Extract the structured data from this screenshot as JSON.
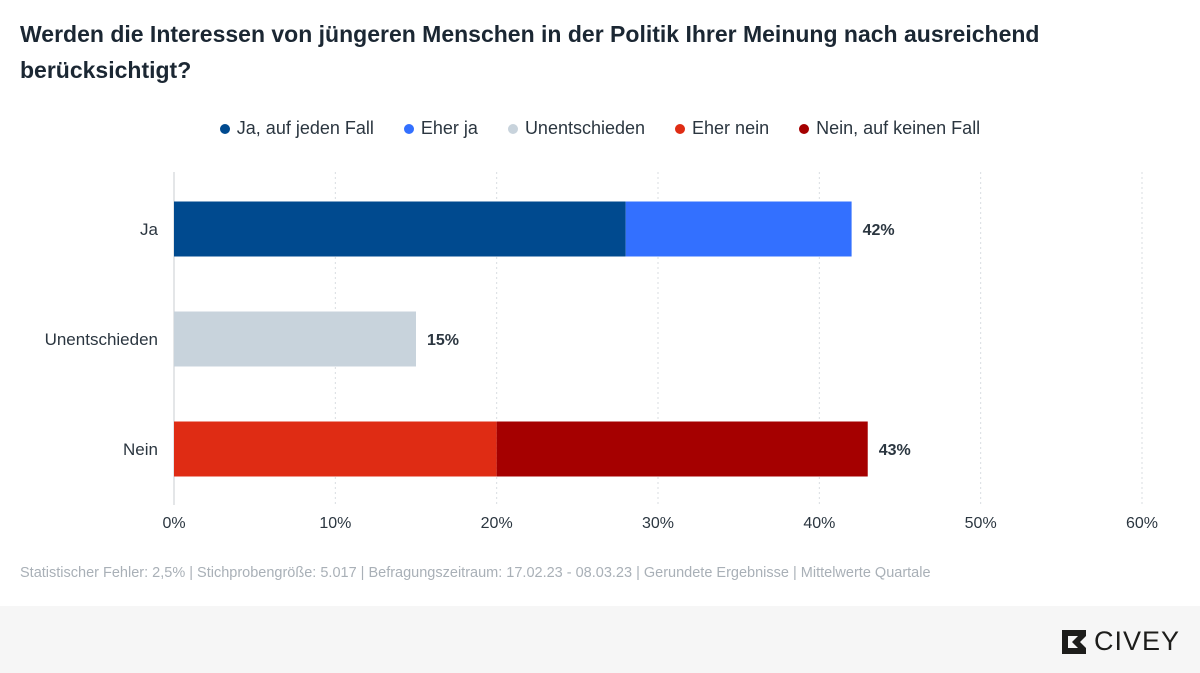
{
  "title": "Werden die Interessen von jüngeren Menschen in der Politik Ihrer Meinung nach ausreichend berücksichtigt?",
  "legend": [
    {
      "label": "Ja, auf jeden Fall",
      "color": "#004a8f"
    },
    {
      "label": "Eher ja",
      "color": "#3370ff"
    },
    {
      "label": "Unentschieden",
      "color": "#c8d3dc"
    },
    {
      "label": "Eher nein",
      "color": "#df2c14"
    },
    {
      "label": "Nein, auf keinen Fall",
      "color": "#a50000"
    }
  ],
  "chart_data": {
    "type": "bar",
    "orientation": "horizontal",
    "stacked": true,
    "categories": [
      "Ja",
      "Unentschieden",
      "Nein"
    ],
    "series": [
      {
        "name": "Ja, auf jeden Fall",
        "color": "#004a8f",
        "values": [
          28,
          0,
          0
        ]
      },
      {
        "name": "Eher ja",
        "color": "#3370ff",
        "values": [
          14,
          0,
          0
        ]
      },
      {
        "name": "Unentschieden",
        "color": "#c8d3dc",
        "values": [
          0,
          15,
          0
        ]
      },
      {
        "name": "Eher nein",
        "color": "#df2c14",
        "values": [
          0,
          0,
          20
        ]
      },
      {
        "name": "Nein, auf keinen Fall",
        "color": "#a50000",
        "values": [
          0,
          0,
          23
        ]
      }
    ],
    "totals": [
      "42%",
      "15%",
      "43%"
    ],
    "xlim": [
      0,
      60
    ],
    "xticks": [
      "0%",
      "10%",
      "20%",
      "30%",
      "40%",
      "50%",
      "60%"
    ],
    "grid": true,
    "legend_position": "top-center"
  },
  "footnote": "Statistischer Fehler: 2,5% | Stichprobengröße: 5.017 | Befragungszeitraum: 17.02.23 - 08.03.23 | Gerundete Ergebnisse | Mittelwerte Quartale",
  "brand": {
    "name": "CIVEY",
    "icon": "civey-logo-icon"
  }
}
